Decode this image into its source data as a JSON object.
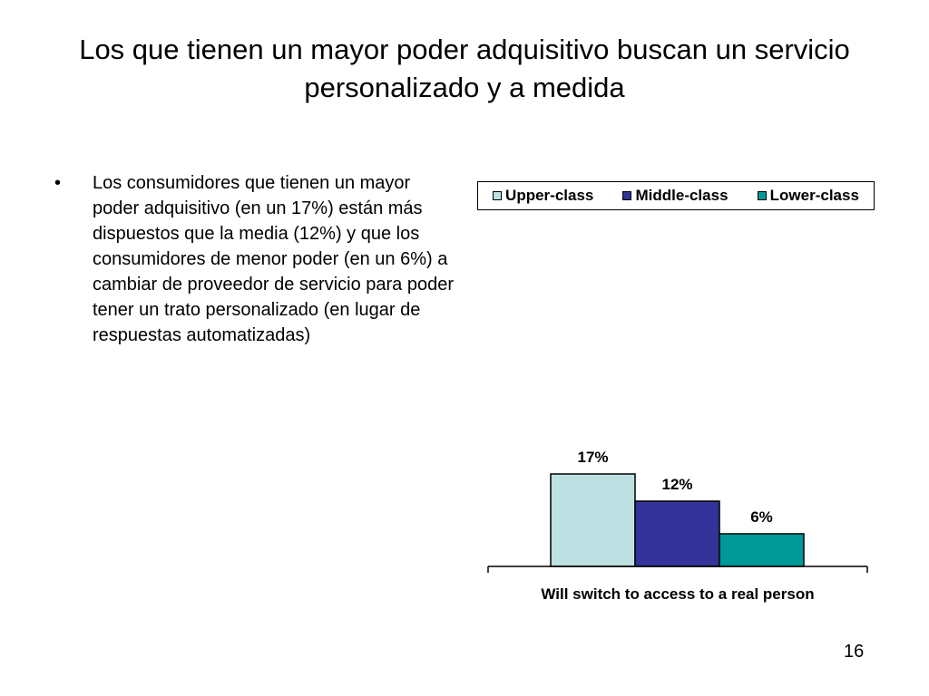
{
  "title": "Los que tienen un mayor poder adquisitivo buscan un servicio personalizado y a medida",
  "bullet": {
    "marker": "•",
    "text": "Los consumidores que tienen un mayor poder adquisitivo (en un 17%) están más dispuestos que la media (12%) y que los consumidores de menor poder (en un 6%) a cambiar de proveedor de servicio para poder tener un trato personalizado (en lugar de respuestas automatizadas)"
  },
  "slide_number": "16",
  "chart_data": {
    "type": "bar",
    "categories": [
      "Will switch to access to a real person"
    ],
    "series": [
      {
        "name": "Upper-class",
        "values": [
          17
        ],
        "label": "17%",
        "color": "#bde0e2"
      },
      {
        "name": "Middle-class",
        "values": [
          12
        ],
        "label": "12%",
        "color": "#333399"
      },
      {
        "name": "Lower-class",
        "values": [
          6
        ],
        "label": "6%",
        "color": "#009999"
      }
    ],
    "xlabel": "Will switch to access to a real person",
    "ylim": [
      0,
      20
    ],
    "legend_position": "top",
    "grid": false
  }
}
